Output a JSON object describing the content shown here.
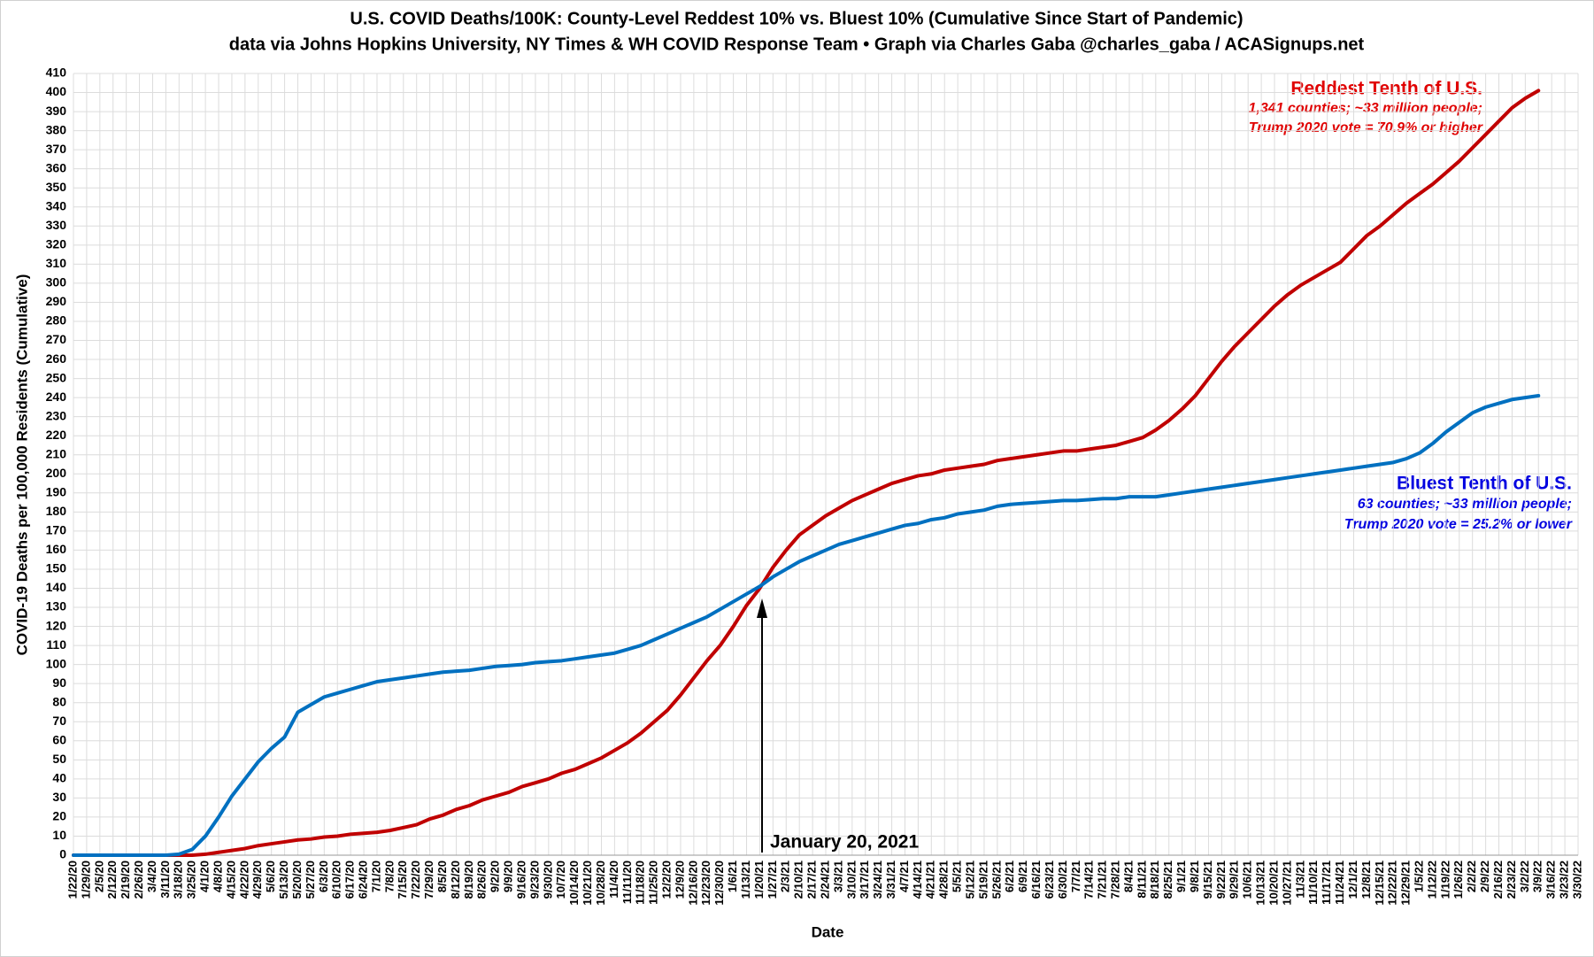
{
  "chart_data": {
    "type": "line",
    "title": "U.S. COVID Deaths/100K: County-Level Reddest 10% vs. Bluest 10% (Cumulative Since Start of Pandemic)",
    "subtitle": "data via Johns Hopkins University, NY Times & WH COVID Response Team • Graph via Charles Gaba @charles_gaba / ACASignups.net",
    "xlabel": "Date",
    "ylabel": "COVID-19 Deaths per 100,000 Residents (Cumulative)",
    "categories": [
      "1/22/20",
      "1/29/20",
      "2/5/20",
      "2/12/20",
      "2/19/20",
      "2/26/20",
      "3/4/20",
      "3/11/20",
      "3/18/20",
      "3/25/20",
      "4/1/20",
      "4/8/20",
      "4/15/20",
      "4/22/20",
      "4/29/20",
      "5/6/20",
      "5/13/20",
      "5/20/20",
      "5/27/20",
      "6/3/20",
      "6/10/20",
      "6/17/20",
      "6/24/20",
      "7/1/20",
      "7/8/20",
      "7/15/20",
      "7/22/20",
      "7/29/20",
      "8/5/20",
      "8/12/20",
      "8/19/20",
      "8/26/20",
      "9/2/20",
      "9/9/20",
      "9/16/20",
      "9/23/20",
      "9/30/20",
      "10/7/20",
      "10/14/20",
      "10/21/20",
      "10/28/20",
      "11/4/20",
      "11/11/20",
      "11/18/20",
      "11/25/20",
      "12/2/20",
      "12/9/20",
      "12/16/20",
      "12/23/20",
      "12/30/20",
      "1/6/21",
      "1/13/21",
      "1/20/21",
      "1/27/21",
      "2/3/21",
      "2/10/21",
      "2/17/21",
      "2/24/21",
      "3/3/21",
      "3/10/21",
      "3/17/21",
      "3/24/21",
      "3/31/21",
      "4/7/21",
      "4/14/21",
      "4/21/21",
      "4/28/21",
      "5/5/21",
      "5/12/21",
      "5/19/21",
      "5/26/21",
      "6/2/21",
      "6/9/21",
      "6/16/21",
      "6/23/21",
      "6/30/21",
      "7/7/21",
      "7/14/21",
      "7/21/21",
      "7/28/21",
      "8/4/21",
      "8/11/21",
      "8/18/21",
      "8/25/21",
      "9/1/21",
      "9/8/21",
      "9/15/21",
      "9/22/21",
      "9/29/21",
      "10/6/21",
      "10/13/21",
      "10/20/21",
      "10/27/21",
      "11/3/21",
      "11/10/21",
      "11/17/21",
      "11/24/21",
      "12/1/21",
      "12/8/21",
      "12/15/21",
      "12/22/21",
      "12/29/21",
      "1/5/22",
      "1/12/22",
      "1/19/22",
      "1/26/22",
      "2/2/22",
      "2/9/22",
      "2/16/22",
      "2/23/22",
      "3/2/22",
      "3/9/22",
      "3/16/22",
      "3/23/22",
      "3/30/22"
    ],
    "series": [
      {
        "name": "Reddest Tenth of U.S.",
        "color": "#c00000",
        "values": [
          0,
          0,
          0,
          0,
          0,
          0,
          0,
          0,
          0,
          0,
          0.5,
          1.5,
          2.5,
          3.5,
          5,
          6,
          7,
          8,
          8.5,
          9.5,
          10,
          11,
          11.5,
          12,
          13,
          14.5,
          16,
          19,
          21,
          24,
          26,
          29,
          31,
          33,
          36,
          38,
          40,
          43,
          45,
          48,
          51,
          55,
          59,
          64,
          70,
          76,
          84,
          93,
          102,
          110,
          120,
          131,
          140,
          151,
          160,
          168,
          173,
          178,
          182,
          186,
          189,
          192,
          195,
          197,
          199,
          200,
          202,
          203,
          204,
          205,
          207,
          208,
          209,
          210,
          211,
          212,
          212,
          213,
          214,
          215,
          217,
          219,
          223,
          228,
          234,
          241,
          250,
          259,
          267,
          274,
          281,
          288,
          294,
          299,
          303,
          307,
          311,
          318,
          325,
          330,
          336,
          342,
          347,
          352,
          358,
          364,
          371,
          378,
          385,
          392,
          397,
          401,
          null,
          null,
          null
        ]
      },
      {
        "name": "Bluest Tenth of U.S.",
        "color": "#0070c0",
        "values": [
          0,
          0,
          0,
          0,
          0,
          0,
          0,
          0,
          0.5,
          3,
          10,
          20,
          31,
          40,
          49,
          56,
          62,
          75,
          79,
          83,
          85,
          87,
          89,
          91,
          92,
          93,
          94,
          95,
          96,
          96.5,
          97,
          98,
          99,
          99.5,
          100,
          101,
          101.5,
          102,
          103,
          104,
          105,
          106,
          108,
          110,
          113,
          116,
          119,
          122,
          125,
          129,
          133,
          137,
          141,
          146,
          150,
          154,
          157,
          160,
          163,
          165,
          167,
          169,
          171,
          173,
          174,
          176,
          177,
          179,
          180,
          181,
          183,
          184,
          184.5,
          185,
          185.5,
          186,
          186,
          186.5,
          187,
          187,
          188,
          188,
          188,
          189,
          190,
          191,
          192,
          193,
          194,
          195,
          196,
          197,
          198,
          199,
          200,
          201,
          202,
          203,
          204,
          205,
          206,
          208,
          211,
          216,
          222,
          227,
          232,
          235,
          237,
          239,
          240,
          241,
          null,
          null,
          null
        ]
      }
    ],
    "annotations": {
      "red": [
        "1,341 counties; ~33 million people;",
        "Trump 2020 vote = 70.9% or higher"
      ],
      "blue": [
        "63 counties; ~33 million people;",
        "Trump 2020 vote = 25.2% or lower"
      ],
      "arrow": "January 20, 2021"
    },
    "ylim": [
      0,
      410
    ],
    "yticks": [
      0,
      10,
      20,
      30,
      40,
      50,
      60,
      70,
      80,
      90,
      100,
      110,
      120,
      130,
      140,
      150,
      160,
      170,
      180,
      190,
      200,
      210,
      220,
      230,
      240,
      250,
      260,
      270,
      280,
      290,
      300,
      310,
      320,
      330,
      340,
      350,
      360,
      370,
      380,
      390,
      400,
      410
    ],
    "grid": true
  }
}
